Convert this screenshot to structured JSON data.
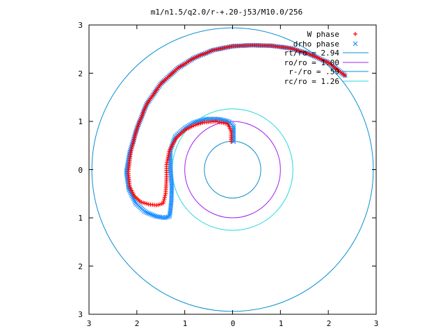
{
  "chart_data": {
    "type": "scatter",
    "title": "m1/n1.5/q2.0/r-+.20-j53/M10.0/256",
    "xlim": [
      -3,
      3
    ],
    "ylim": [
      -3,
      3
    ],
    "x_tick_labels": [
      "3",
      "2",
      "1",
      "0",
      "1",
      "2",
      "3"
    ],
    "y_tick_labels": [
      "3",
      "2",
      "1",
      "0",
      "1",
      "2",
      "3"
    ],
    "grid": false,
    "legend_position": "top-right",
    "colors": {
      "w_phase": "#ff0000",
      "drho_phase": "#1e90ff",
      "rt_circle": "#0a8fd0",
      "ro_circle": "#a020f0",
      "rminus_circle": "#0a8fd0",
      "rc_circle": "#22d6e0",
      "axes": "#000000"
    },
    "circles": [
      {
        "label": "rt/ro = 2.94",
        "radius": 2.94,
        "color_key": "rt_circle"
      },
      {
        "label": "ro/ro = 1.00",
        "radius": 1.0,
        "color_key": "ro_circle"
      },
      {
        "label": "r-/ro = .59",
        "radius": 0.59,
        "color_key": "rminus_circle"
      },
      {
        "label": "rc/ro = 1.26",
        "radius": 1.26,
        "color_key": "rc_circle"
      }
    ],
    "series": [
      {
        "name": "W phase",
        "marker": "+",
        "color_key": "w_phase",
        "x": [
          2.35,
          2.0,
          1.6,
          1.2,
          0.8,
          0.4,
          0.0,
          -0.4,
          -0.8,
          -1.15,
          -1.5,
          -1.8,
          -2.0,
          -2.13,
          -2.18,
          -2.15,
          -2.05,
          -1.92,
          -1.75,
          -1.58,
          -1.45,
          -1.4,
          -1.38,
          -1.38,
          -1.32,
          -1.18,
          -1.0,
          -0.8,
          -0.6,
          -0.35,
          -0.1,
          -0.03,
          -0.03
        ],
        "y": [
          1.95,
          2.22,
          2.4,
          2.52,
          2.57,
          2.58,
          2.56,
          2.48,
          2.32,
          2.1,
          1.78,
          1.35,
          0.85,
          0.35,
          -0.05,
          -0.35,
          -0.55,
          -0.67,
          -0.72,
          -0.74,
          -0.7,
          -0.5,
          -0.2,
          0.1,
          0.4,
          0.65,
          0.82,
          0.92,
          0.98,
          1.0,
          0.95,
          0.8,
          0.58
        ],
        "point_count": 260
      },
      {
        "name": "drho phase",
        "marker": "x",
        "color_key": "drho_phase",
        "x": [
          2.35,
          2.0,
          1.6,
          1.2,
          0.8,
          0.4,
          0.0,
          -0.4,
          -0.8,
          -1.15,
          -1.5,
          -1.8,
          -2.0,
          -2.15,
          -2.22,
          -2.17,
          -2.02,
          -1.82,
          -1.6,
          -1.42,
          -1.32,
          -1.3,
          -1.28,
          -1.27,
          -1.3,
          -1.3,
          -1.2,
          -1.0,
          -0.8,
          -0.55,
          -0.3,
          -0.08,
          0.02,
          0.02,
          0.02
        ],
        "y": [
          1.95,
          2.22,
          2.4,
          2.52,
          2.57,
          2.58,
          2.56,
          2.48,
          2.32,
          2.1,
          1.78,
          1.35,
          0.85,
          0.35,
          -0.05,
          -0.4,
          -0.7,
          -0.88,
          -0.97,
          -1.0,
          -0.97,
          -0.85,
          -0.65,
          -0.35,
          0.05,
          0.4,
          0.68,
          0.86,
          0.98,
          1.05,
          1.05,
          1.0,
          0.9,
          0.75,
          0.58
        ],
        "point_count": 320
      }
    ]
  }
}
